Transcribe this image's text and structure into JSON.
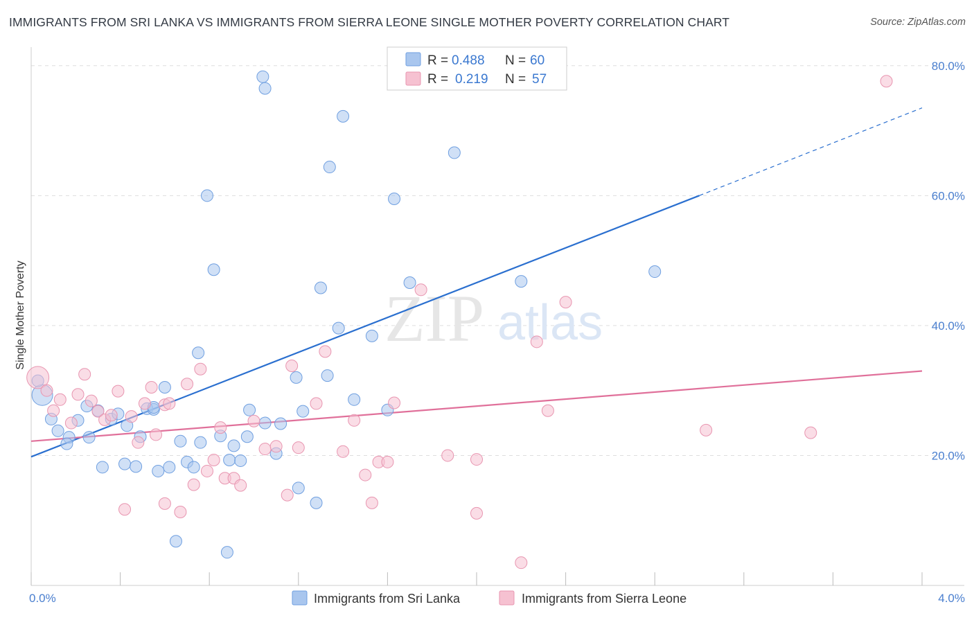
{
  "title": "IMMIGRANTS FROM SRI LANKA VS IMMIGRANTS FROM SIERRA LEONE SINGLE MOTHER POVERTY CORRELATION CHART",
  "source": "Source: ZipAtlas.com",
  "watermark": {
    "zip": "ZIP",
    "atlas": "atlas"
  },
  "colors": {
    "blue_fill": "#a9c6ee",
    "blue_stroke": "#6f9fe0",
    "blue_line": "#2a6fcf",
    "pink_fill": "#f6c1d1",
    "pink_stroke": "#e895b0",
    "pink_line": "#e0709a",
    "axis_label": "#4a7fcf",
    "grid": "#dddddd"
  },
  "legend": {
    "r_label": "R =",
    "n_label": "N =",
    "series": [
      {
        "r": "0.488",
        "n": "60"
      },
      {
        "r": "0.219",
        "n": "57"
      }
    ]
  },
  "chart_data": {
    "type": "scatter",
    "title": "IMMIGRANTS FROM SRI LANKA VS IMMIGRANTS FROM SIERRA LEONE SINGLE MOTHER POVERTY CORRELATION CHART",
    "xlabel": "",
    "ylabel": "Single Mother Poverty",
    "xlim": [
      0,
      4.0
    ],
    "ylim": [
      0,
      82
    ],
    "x_tick_labels": [
      "0.0%",
      "4.0%"
    ],
    "y_ticks": [
      20,
      40,
      60,
      80
    ],
    "y_tick_labels": [
      "20.0%",
      "40.0%",
      "60.0%",
      "80.0%"
    ],
    "grid": true,
    "legend_position": "top-center",
    "series": [
      {
        "name": "Immigrants from Sri Lanka",
        "color": "blue",
        "points": [
          [
            0.05,
            29.3
          ],
          [
            0.03,
            31.5
          ],
          [
            0.09,
            25.6
          ],
          [
            0.12,
            23.8
          ],
          [
            0.17,
            22.8
          ],
          [
            0.16,
            21.8
          ],
          [
            0.21,
            25.4
          ],
          [
            0.25,
            27.6
          ],
          [
            0.26,
            22.8
          ],
          [
            0.3,
            26.9
          ],
          [
            0.32,
            18.2
          ],
          [
            0.36,
            25.6
          ],
          [
            0.39,
            26.4
          ],
          [
            0.43,
            24.6
          ],
          [
            0.42,
            18.7
          ],
          [
            0.47,
            18.3
          ],
          [
            0.49,
            22.9
          ],
          [
            0.52,
            27.2
          ],
          [
            0.55,
            27.1
          ],
          [
            0.57,
            17.6
          ],
          [
            0.6,
            30.5
          ],
          [
            0.62,
            18.2
          ],
          [
            0.67,
            22.2
          ],
          [
            0.7,
            19.0
          ],
          [
            0.73,
            18.2
          ],
          [
            0.76,
            22.0
          ],
          [
            0.75,
            35.8
          ],
          [
            0.79,
            60.0
          ],
          [
            0.82,
            48.6
          ],
          [
            0.85,
            23.0
          ],
          [
            0.89,
            19.3
          ],
          [
            0.91,
            21.5
          ],
          [
            0.94,
            19.2
          ],
          [
            0.98,
            27.0
          ],
          [
            1.04,
            78.3
          ],
          [
            1.05,
            76.5
          ],
          [
            1.1,
            20.3
          ],
          [
            1.12,
            24.9
          ],
          [
            1.19,
            32.0
          ],
          [
            1.2,
            15.0
          ],
          [
            1.22,
            26.8
          ],
          [
            1.28,
            12.7
          ],
          [
            1.3,
            45.8
          ],
          [
            1.34,
            64.4
          ],
          [
            1.33,
            32.3
          ],
          [
            1.38,
            39.6
          ],
          [
            1.4,
            72.2
          ],
          [
            1.45,
            28.6
          ],
          [
            1.53,
            38.4
          ],
          [
            1.63,
            59.5
          ],
          [
            1.7,
            46.6
          ],
          [
            1.9,
            66.6
          ],
          [
            2.2,
            46.8
          ],
          [
            2.8,
            48.3
          ],
          [
            0.65,
            6.8
          ],
          [
            0.88,
            5.1
          ],
          [
            1.6,
            27.0
          ],
          [
            1.05,
            25.0
          ],
          [
            0.97,
            22.9
          ],
          [
            0.55,
            27.4
          ]
        ]
      },
      {
        "name": "Immigrants from Sierra Leone",
        "color": "pink",
        "points": [
          [
            0.03,
            32.0
          ],
          [
            0.07,
            30.0
          ],
          [
            0.1,
            26.9
          ],
          [
            0.13,
            28.6
          ],
          [
            0.18,
            25.0
          ],
          [
            0.21,
            29.4
          ],
          [
            0.24,
            32.5
          ],
          [
            0.27,
            28.4
          ],
          [
            0.3,
            26.8
          ],
          [
            0.33,
            25.5
          ],
          [
            0.36,
            26.2
          ],
          [
            0.39,
            29.9
          ],
          [
            0.42,
            11.7
          ],
          [
            0.45,
            26.0
          ],
          [
            0.48,
            22.0
          ],
          [
            0.51,
            28.0
          ],
          [
            0.54,
            30.5
          ],
          [
            0.56,
            23.2
          ],
          [
            0.6,
            27.8
          ],
          [
            0.6,
            12.6
          ],
          [
            0.67,
            11.3
          ],
          [
            0.7,
            31.0
          ],
          [
            0.73,
            15.5
          ],
          [
            0.76,
            33.3
          ],
          [
            0.79,
            17.6
          ],
          [
            0.82,
            19.3
          ],
          [
            0.85,
            24.3
          ],
          [
            0.87,
            16.5
          ],
          [
            0.91,
            16.5
          ],
          [
            0.94,
            15.4
          ],
          [
            1.0,
            25.3
          ],
          [
            1.05,
            21.0
          ],
          [
            1.1,
            21.4
          ],
          [
            1.15,
            13.9
          ],
          [
            1.17,
            33.8
          ],
          [
            1.2,
            21.2
          ],
          [
            1.28,
            28.0
          ],
          [
            1.32,
            36.0
          ],
          [
            1.4,
            20.6
          ],
          [
            1.45,
            25.4
          ],
          [
            1.5,
            17.0
          ],
          [
            1.53,
            12.7
          ],
          [
            1.56,
            19.0
          ],
          [
            1.6,
            19.0
          ],
          [
            1.63,
            28.1
          ],
          [
            1.75,
            45.5
          ],
          [
            1.87,
            20.0
          ],
          [
            2.0,
            19.4
          ],
          [
            2.0,
            11.1
          ],
          [
            2.2,
            3.5
          ],
          [
            2.27,
            37.5
          ],
          [
            2.32,
            26.9
          ],
          [
            2.4,
            43.6
          ],
          [
            3.03,
            23.9
          ],
          [
            3.5,
            23.5
          ],
          [
            3.84,
            77.6
          ],
          [
            0.62,
            28.0
          ]
        ]
      }
    ],
    "trend_lines": [
      {
        "series": "Immigrants from Sri Lanka",
        "solid": [
          [
            0.0,
            19.8
          ],
          [
            3.0,
            60.0
          ]
        ],
        "dashed": [
          [
            3.0,
            60.0
          ],
          [
            4.0,
            73.5
          ]
        ]
      },
      {
        "series": "Immigrants from Sierra Leone",
        "solid": [
          [
            0.0,
            22.2
          ],
          [
            4.0,
            33.0
          ]
        ]
      }
    ]
  }
}
